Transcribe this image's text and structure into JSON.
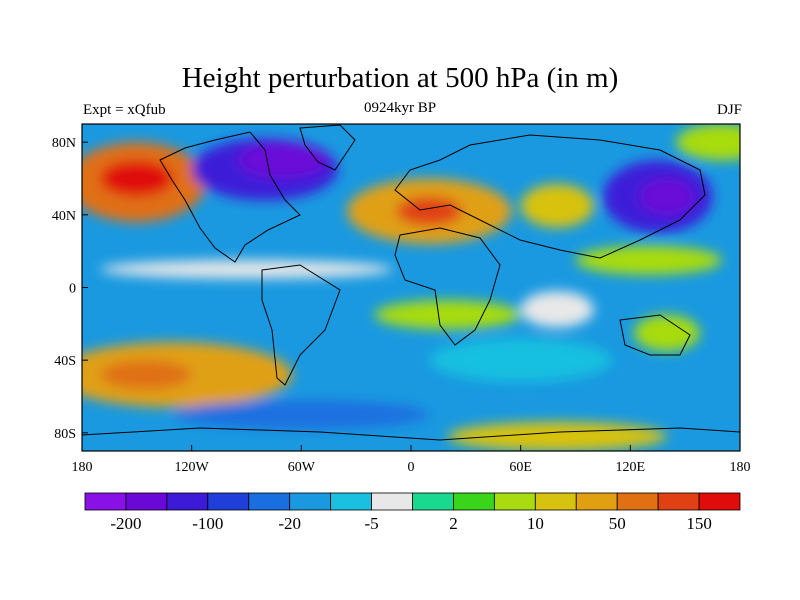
{
  "title": "Height perturbation at 500 hPa (in m)",
  "subtitle_left": "Expt = xQfub",
  "subtitle_center": "0924kyr BP",
  "subtitle_right": "DJF",
  "lat_ticks": [
    "80N",
    "40N",
    "0",
    "40S",
    "80S"
  ],
  "lon_ticks": [
    "180",
    "120W",
    "60W",
    "0",
    "60E",
    "120E",
    "180"
  ],
  "colorbar": {
    "colors": [
      "#8a10e8",
      "#6a08d8",
      "#3d1ad8",
      "#1f3fd8",
      "#1a6fe0",
      "#1a99e0",
      "#19c0e0",
      "#e8e8e8",
      "#19d890",
      "#3ad41a",
      "#a8dc10",
      "#d8c210",
      "#e0a012",
      "#e07012",
      "#e04014",
      "#e00c0c"
    ],
    "labels": [
      "-200",
      "-100",
      "-20",
      "-5",
      "2",
      "10",
      "50",
      "150"
    ]
  },
  "field": {
    "background_level": 5,
    "blobs": [
      {
        "lon": -150,
        "lat": 58,
        "rlon": 38,
        "rlat": 22,
        "level": 13
      },
      {
        "lon": -150,
        "lat": 60,
        "rlon": 20,
        "rlat": 10,
        "level": 15
      },
      {
        "lon": -80,
        "lat": 65,
        "rlon": 40,
        "rlat": 17,
        "level": 2
      },
      {
        "lon": -70,
        "lat": 70,
        "rlon": 25,
        "rlat": 10,
        "level": 1
      },
      {
        "lon": 10,
        "lat": 42,
        "rlon": 45,
        "rlat": 18,
        "level": 12
      },
      {
        "lon": 10,
        "lat": 42,
        "rlon": 18,
        "rlat": 8,
        "level": 14
      },
      {
        "lon": 80,
        "lat": 45,
        "rlon": 20,
        "rlat": 12,
        "level": 11
      },
      {
        "lon": 135,
        "lat": 50,
        "rlon": 30,
        "rlat": 20,
        "level": 2
      },
      {
        "lon": 140,
        "lat": 50,
        "rlon": 15,
        "rlat": 10,
        "level": 1
      },
      {
        "lon": 130,
        "lat": 15,
        "rlon": 40,
        "rlat": 8,
        "level": 10
      },
      {
        "lon": -90,
        "lat": 10,
        "rlon": 80,
        "rlat": 5,
        "level": 7
      },
      {
        "lon": 20,
        "lat": -15,
        "rlon": 40,
        "rlat": 8,
        "level": 10
      },
      {
        "lon": 80,
        "lat": -12,
        "rlon": 20,
        "rlat": 10,
        "level": 7
      },
      {
        "lon": 140,
        "lat": -25,
        "rlon": 18,
        "rlat": 10,
        "level": 10
      },
      {
        "lon": -130,
        "lat": -48,
        "rlon": 65,
        "rlat": 18,
        "level": 12
      },
      {
        "lon": -145,
        "lat": -48,
        "rlon": 25,
        "rlat": 8,
        "level": 13
      },
      {
        "lon": 60,
        "lat": -40,
        "rlon": 50,
        "rlat": 12,
        "level": 6
      },
      {
        "lon": 80,
        "lat": -82,
        "rlon": 60,
        "rlat": 8,
        "level": 11
      },
      {
        "lon": -60,
        "lat": -70,
        "rlon": 70,
        "rlat": 8,
        "level": 4
      },
      {
        "lon": 170,
        "lat": 80,
        "rlon": 25,
        "rlat": 10,
        "level": 10
      }
    ]
  }
}
